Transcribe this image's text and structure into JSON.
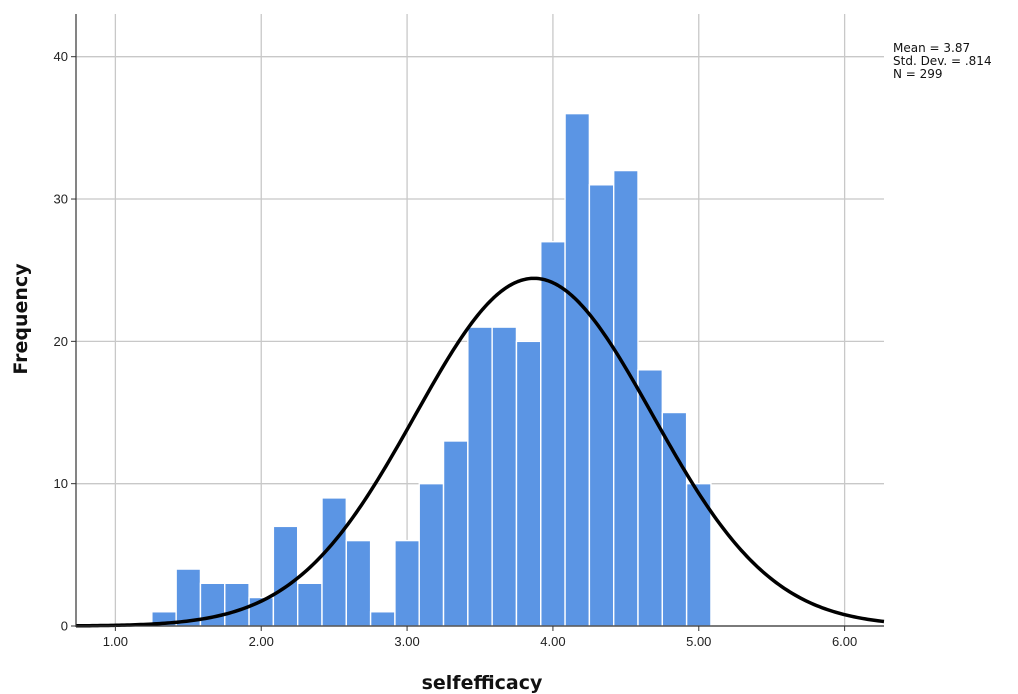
{
  "chart_data": {
    "type": "histogram",
    "xlabel": "selfefficacy",
    "ylabel": "Frequency",
    "xlim": [
      0.73,
      6.27
    ],
    "ylim": [
      0,
      43
    ],
    "x_ticks": [
      "1.00",
      "2.00",
      "3.00",
      "4.00",
      "5.00",
      "6.00"
    ],
    "y_ticks": [
      "0",
      "10",
      "20",
      "30",
      "40"
    ],
    "x_tick_values": [
      1,
      2,
      3,
      4,
      5,
      6
    ],
    "y_tick_values": [
      0,
      10,
      20,
      30,
      40
    ],
    "grid": true,
    "bar_color": "#5b95e4",
    "curve_color": "#000000",
    "bin_width": 0.1667,
    "bins": [
      {
        "start": 1.25,
        "count": 1
      },
      {
        "start": 1.4167,
        "count": 4
      },
      {
        "start": 1.5833,
        "count": 3
      },
      {
        "start": 1.75,
        "count": 3
      },
      {
        "start": 1.9167,
        "count": 2
      },
      {
        "start": 2.0833,
        "count": 7
      },
      {
        "start": 2.25,
        "count": 3
      },
      {
        "start": 2.4167,
        "count": 9
      },
      {
        "start": 2.5833,
        "count": 6
      },
      {
        "start": 2.75,
        "count": 1
      },
      {
        "start": 2.9167,
        "count": 6
      },
      {
        "start": 3.0833,
        "count": 10
      },
      {
        "start": 3.25,
        "count": 13
      },
      {
        "start": 3.4167,
        "count": 21
      },
      {
        "start": 3.5833,
        "count": 21
      },
      {
        "start": 3.75,
        "count": 20
      },
      {
        "start": 3.9167,
        "count": 27
      },
      {
        "start": 4.0833,
        "count": 36
      },
      {
        "start": 4.25,
        "count": 31
      },
      {
        "start": 4.4167,
        "count": 32
      },
      {
        "start": 4.5833,
        "count": 18
      },
      {
        "start": 4.75,
        "count": 15
      },
      {
        "start": 4.9167,
        "count": 10
      }
    ],
    "normal_curve": {
      "mean": 3.87,
      "sd": 0.814,
      "n": 299
    },
    "stats_lines": [
      "Mean = 3.87",
      "Std. Dev. = .814",
      "N = 299"
    ]
  }
}
